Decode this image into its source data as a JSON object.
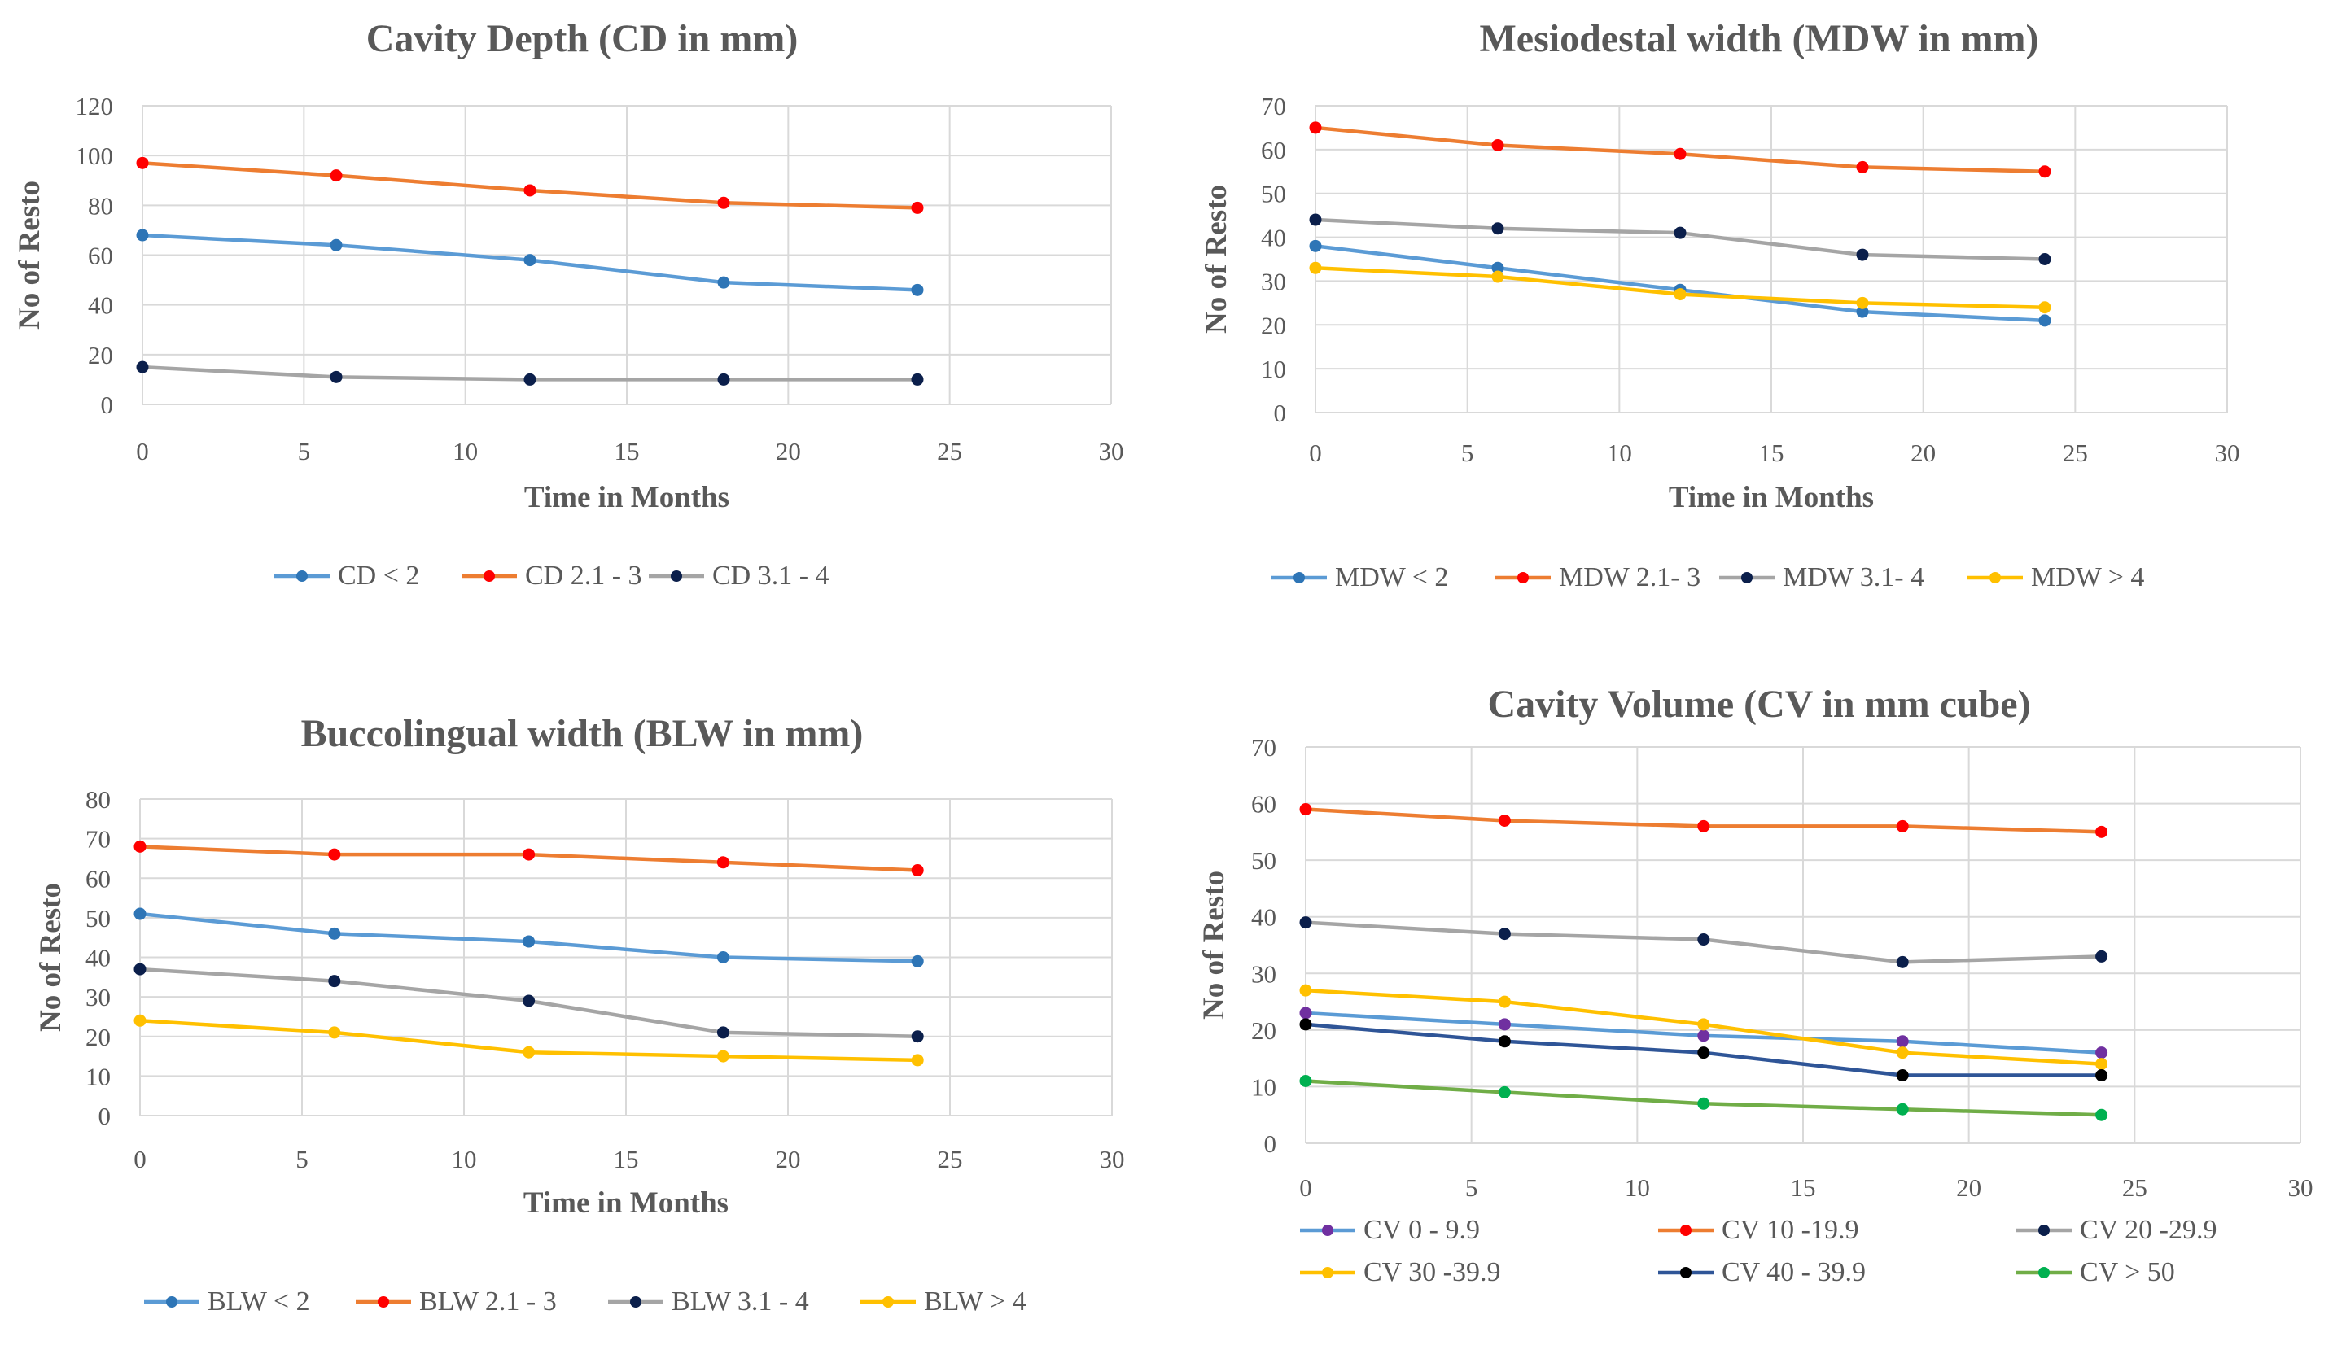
{
  "chart_data": [
    {
      "type": "line",
      "title": "Cavity Depth (CD in mm)",
      "xlabel": "Time in Months",
      "ylabel": "No of Resto",
      "xlim": [
        0,
        30
      ],
      "ylim": [
        0,
        120
      ],
      "xticks": [
        0,
        5,
        10,
        15,
        20,
        25,
        30
      ],
      "yticks": [
        0,
        20,
        40,
        60,
        80,
        100,
        120
      ],
      "x": [
        0,
        6,
        12,
        18,
        24
      ],
      "legend_position": "bottom",
      "series": [
        {
          "name": "CD < 2",
          "color": "#5B9BD5",
          "marker": "#2E75B6",
          "values": [
            68,
            64,
            58,
            49,
            46
          ]
        },
        {
          "name": "CD 2.1 - 3",
          "color": "#ED7D31",
          "marker": "#FF0000",
          "values": [
            97,
            92,
            86,
            81,
            79
          ]
        },
        {
          "name": "CD 3.1 - 4",
          "color": "#A5A5A5",
          "marker": "#0B1F4B",
          "values": [
            15,
            11,
            10,
            10,
            10
          ]
        }
      ]
    },
    {
      "type": "line",
      "title": "Mesiodestal width (MDW in mm)",
      "xlabel": "Time in Months",
      "ylabel": "No of Resto",
      "xlim": [
        0,
        30
      ],
      "ylim": [
        0,
        70
      ],
      "xticks": [
        0,
        5,
        10,
        15,
        20,
        25,
        30
      ],
      "yticks": [
        0,
        10,
        20,
        30,
        40,
        50,
        60,
        70
      ],
      "x": [
        0,
        6,
        12,
        18,
        24
      ],
      "legend_position": "bottom",
      "series": [
        {
          "name": "MDW < 2",
          "color": "#5B9BD5",
          "marker": "#2E75B6",
          "values": [
            38,
            33,
            28,
            23,
            21
          ]
        },
        {
          "name": "MDW 2.1- 3",
          "color": "#ED7D31",
          "marker": "#FF0000",
          "values": [
            65,
            61,
            59,
            56,
            55
          ]
        },
        {
          "name": "MDW 3.1- 4",
          "color": "#A5A5A5",
          "marker": "#0B1F4B",
          "values": [
            44,
            42,
            41,
            36,
            35
          ]
        },
        {
          "name": "MDW > 4",
          "color": "#FFC000",
          "marker": "#FFC000",
          "values": [
            33,
            31,
            27,
            25,
            24
          ]
        }
      ]
    },
    {
      "type": "line",
      "title": "Buccolingual width (BLW in mm)",
      "xlabel": "Time in Months",
      "ylabel": "No of Resto",
      "xlim": [
        0,
        30
      ],
      "ylim": [
        0,
        80
      ],
      "xticks": [
        0,
        5,
        10,
        15,
        20,
        25,
        30
      ],
      "yticks": [
        0,
        10,
        20,
        30,
        40,
        50,
        60,
        70,
        80
      ],
      "x": [
        0,
        6,
        12,
        18,
        24
      ],
      "legend_position": "bottom",
      "series": [
        {
          "name": "BLW < 2",
          "color": "#5B9BD5",
          "marker": "#2E75B6",
          "values": [
            51,
            46,
            44,
            40,
            39
          ]
        },
        {
          "name": "BLW 2.1 - 3",
          "color": "#ED7D31",
          "marker": "#FF0000",
          "values": [
            68,
            66,
            66,
            64,
            62
          ]
        },
        {
          "name": "BLW 3.1 - 4",
          "color": "#A5A5A5",
          "marker": "#0B1F4B",
          "values": [
            37,
            34,
            29,
            21,
            20
          ]
        },
        {
          "name": "BLW > 4",
          "color": "#FFC000",
          "marker": "#FFC000",
          "values": [
            24,
            21,
            16,
            15,
            14
          ]
        }
      ]
    },
    {
      "type": "line",
      "title": "Cavity Volume (CV in mm cube)",
      "xlabel": "",
      "ylabel": "No of Resto",
      "xlim": [
        0,
        30
      ],
      "ylim": [
        0,
        70
      ],
      "xticks": [
        0,
        5,
        10,
        15,
        20,
        25,
        30
      ],
      "yticks": [
        0,
        10,
        20,
        30,
        40,
        50,
        60,
        70
      ],
      "x": [
        0,
        6,
        12,
        18,
        24
      ],
      "legend_position": "bottom",
      "series": [
        {
          "name": "CV 0 - 9.9",
          "color": "#5B9BD5",
          "marker": "#7030A0",
          "values": [
            23,
            21,
            19,
            18,
            16
          ]
        },
        {
          "name": "CV 10 -19.9",
          "color": "#ED7D31",
          "marker": "#FF0000",
          "values": [
            59,
            57,
            56,
            56,
            55
          ]
        },
        {
          "name": "CV 20 -29.9",
          "color": "#A5A5A5",
          "marker": "#0B1F4B",
          "values": [
            39,
            37,
            36,
            32,
            33
          ]
        },
        {
          "name": "CV 30 -39.9",
          "color": "#FFC000",
          "marker": "#FFC000",
          "values": [
            27,
            25,
            21,
            16,
            14
          ]
        },
        {
          "name": "CV 40 - 39.9",
          "color": "#2F5597",
          "marker": "#000000",
          "values": [
            21,
            18,
            16,
            12,
            12
          ]
        },
        {
          "name": "CV > 50",
          "color": "#70AD47",
          "marker": "#00B050",
          "values": [
            11,
            9,
            7,
            6,
            5
          ]
        }
      ]
    }
  ]
}
